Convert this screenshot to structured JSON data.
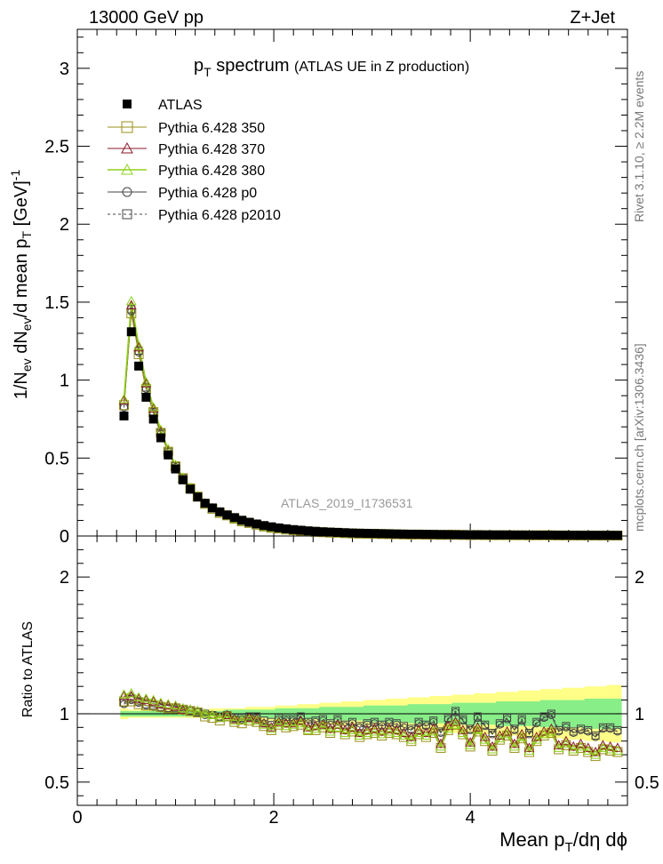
{
  "header": {
    "left": "13000 GeV pp",
    "right": "Z+Jet"
  },
  "title_main": "p",
  "title_sub": "T",
  "title_rest": " spectrum ",
  "title_paren": "(ATLAS UE in Z production)",
  "analysis_label": "ATLAS_2019_I1736531",
  "side_right_top": "Rivet 3.1.10, ≥ 2.2M events",
  "side_right_bottom": "mcplots.cern.ch [arXiv:1306.3436]",
  "ylabel_top": "1/N_ev dN_ev/d mean p_T [GeV]^-1",
  "ylabel_bottom": "Ratio to ATLAS",
  "xlabel": "Mean p_T/dη dϕ",
  "colors": {
    "data": "#000000",
    "p350": "#9a8f1b",
    "p370": "#8b1a2a",
    "p380": "#8fd11d",
    "p0": "#444444",
    "p2010": "#444444",
    "band_outer": "#ffff88",
    "band_inner": "#88ee88"
  },
  "chart_data": {
    "type": "scatter",
    "x": [
      0.475,
      0.55,
      0.625,
      0.7,
      0.775,
      0.85,
      0.925,
      1.0,
      1.075,
      1.15,
      1.225,
      1.3,
      1.375,
      1.45,
      1.525,
      1.6,
      1.675,
      1.75,
      1.825,
      1.9,
      1.975,
      2.05,
      2.125,
      2.2,
      2.275,
      2.35,
      2.425,
      2.5,
      2.575,
      2.65,
      2.725,
      2.8,
      2.875,
      2.95,
      3.025,
      3.1,
      3.175,
      3.25,
      3.325,
      3.4,
      3.475,
      3.55,
      3.625,
      3.7,
      3.775,
      3.85,
      3.925,
      4.0,
      4.075,
      4.15,
      4.225,
      4.3,
      4.375,
      4.45,
      4.525,
      4.6,
      4.675,
      4.75,
      4.825,
      4.9,
      4.975,
      5.05,
      5.125,
      5.2,
      5.275,
      5.35,
      5.425,
      5.5
    ],
    "xlim": [
      0,
      5.6
    ],
    "ylim_main": [
      0,
      3.25
    ],
    "ylim_ratio": [
      0.33,
      2.3
    ],
    "xticks": [
      "0",
      "2",
      "4"
    ],
    "yticks_main": [
      "0",
      "0.5",
      "1",
      "1.5",
      "2",
      "2.5",
      "3"
    ],
    "yticks_ratio": [
      "0.5",
      "1",
      "2"
    ],
    "series": [
      {
        "name": "ATLAS",
        "key": "data",
        "marker": "filled-square",
        "values": [
          0.77,
          1.31,
          1.09,
          0.89,
          0.75,
          0.63,
          0.52,
          0.43,
          0.36,
          0.3,
          0.25,
          0.21,
          0.18,
          0.155,
          0.135,
          0.118,
          0.101,
          0.088,
          0.077,
          0.067,
          0.059,
          0.052,
          0.046,
          0.041,
          0.037,
          0.033,
          0.03,
          0.027,
          0.025,
          0.023,
          0.021,
          0.019,
          0.018,
          0.017,
          0.016,
          0.015,
          0.014,
          0.013,
          0.012,
          0.0115,
          0.011,
          0.0105,
          0.01,
          0.0095,
          0.009,
          0.0085,
          0.008,
          0.0078,
          0.0075,
          0.0072,
          0.007,
          0.0068,
          0.0066,
          0.0064,
          0.0062,
          0.006,
          0.0058,
          0.0056,
          0.0054,
          0.0052,
          0.005,
          0.0048,
          0.0046,
          0.0045,
          0.0044,
          0.0043,
          0.0042,
          0.0041
        ]
      },
      {
        "name": "Pythia 6.428 350",
        "key": "p350",
        "marker": "open-square",
        "ratio": [
          1.09,
          1.09,
          1.07,
          1.06,
          1.06,
          1.05,
          1.04,
          1.04,
          1.03,
          1.02,
          1.01,
          0.98,
          0.97,
          0.95,
          0.98,
          0.94,
          0.93,
          0.95,
          0.94,
          0.91,
          0.88,
          0.92,
          0.9,
          0.91,
          0.92,
          0.88,
          0.88,
          0.9,
          0.86,
          0.9,
          0.85,
          0.87,
          0.83,
          0.85,
          0.86,
          0.84,
          0.86,
          0.85,
          0.83,
          0.8,
          0.85,
          0.83,
          0.86,
          0.75,
          0.88,
          0.92,
          0.85,
          0.76,
          0.87,
          0.8,
          0.73,
          0.81,
          0.84,
          0.75,
          0.82,
          0.72,
          0.8,
          0.84,
          0.86,
          0.74,
          0.77,
          0.73,
          0.75,
          0.72,
          0.69,
          0.74,
          0.73,
          0.72
        ]
      },
      {
        "name": "Pythia 6.428 370",
        "key": "p370",
        "marker": "open-triangle",
        "ratio": [
          1.13,
          1.13,
          1.11,
          1.1,
          1.09,
          1.07,
          1.06,
          1.05,
          1.03,
          1.03,
          1.02,
          1.0,
          0.99,
          0.97,
          0.99,
          0.96,
          0.95,
          0.97,
          0.96,
          0.93,
          0.9,
          0.94,
          0.93,
          0.93,
          0.95,
          0.9,
          0.91,
          0.92,
          0.89,
          0.92,
          0.88,
          0.9,
          0.86,
          0.88,
          0.89,
          0.87,
          0.89,
          0.88,
          0.86,
          0.83,
          0.88,
          0.86,
          0.89,
          0.78,
          0.91,
          0.94,
          0.88,
          0.79,
          0.9,
          0.83,
          0.76,
          0.84,
          0.87,
          0.78,
          0.85,
          0.75,
          0.83,
          0.87,
          0.89,
          0.77,
          0.8,
          0.76,
          0.78,
          0.75,
          0.72,
          0.77,
          0.76,
          0.75
        ]
      },
      {
        "name": "Pythia 6.428 380",
        "key": "p380",
        "marker": "open-triangle",
        "ratio": [
          1.14,
          1.15,
          1.12,
          1.11,
          1.1,
          1.08,
          1.07,
          1.06,
          1.04,
          1.03,
          1.02,
          1.0,
          0.99,
          0.97,
          0.98,
          0.95,
          0.95,
          0.96,
          0.95,
          0.92,
          0.89,
          0.93,
          0.91,
          0.92,
          0.93,
          0.88,
          0.89,
          0.91,
          0.87,
          0.9,
          0.86,
          0.88,
          0.84,
          0.86,
          0.87,
          0.85,
          0.87,
          0.86,
          0.84,
          0.81,
          0.86,
          0.84,
          0.87,
          0.76,
          0.89,
          0.92,
          0.86,
          0.77,
          0.88,
          0.81,
          0.74,
          0.82,
          0.85,
          0.76,
          0.83,
          0.73,
          0.81,
          0.85,
          0.87,
          0.75,
          0.78,
          0.74,
          0.76,
          0.73,
          0.7,
          0.75,
          0.74,
          0.73
        ]
      },
      {
        "name": "Pythia 6.428 p0",
        "key": "p0",
        "marker": "open-circle",
        "ratio": [
          1.07,
          1.1,
          1.08,
          1.06,
          1.05,
          1.04,
          1.04,
          1.03,
          1.02,
          1.02,
          1.01,
          0.99,
          0.99,
          0.97,
          0.99,
          0.96,
          0.96,
          0.97,
          0.97,
          0.93,
          0.92,
          0.96,
          0.95,
          0.95,
          0.97,
          0.93,
          0.94,
          0.95,
          0.92,
          0.95,
          0.91,
          0.93,
          0.9,
          0.92,
          0.93,
          0.91,
          0.93,
          0.92,
          0.9,
          0.88,
          0.93,
          0.91,
          0.94,
          0.86,
          0.96,
          1.01,
          0.95,
          0.88,
          0.97,
          0.91,
          0.85,
          0.92,
          0.96,
          0.88,
          0.95,
          0.85,
          0.93,
          0.97,
          0.99,
          0.87,
          0.9,
          0.86,
          0.88,
          0.87,
          0.83,
          0.89,
          0.89,
          0.87
        ]
      },
      {
        "name": "Pythia 6.428 p2010",
        "key": "p2010",
        "marker": "open-square-dashed",
        "ratio": [
          1.08,
          1.11,
          1.09,
          1.07,
          1.06,
          1.05,
          1.04,
          1.04,
          1.03,
          1.02,
          1.01,
          1.0,
          0.99,
          0.98,
          0.99,
          0.97,
          0.97,
          0.98,
          0.98,
          0.95,
          0.94,
          0.97,
          0.96,
          0.96,
          0.98,
          0.94,
          0.95,
          0.96,
          0.93,
          0.96,
          0.92,
          0.94,
          0.91,
          0.93,
          0.94,
          0.92,
          0.94,
          0.93,
          0.91,
          0.89,
          0.94,
          0.92,
          0.95,
          0.87,
          0.97,
          1.02,
          0.96,
          0.89,
          0.98,
          0.92,
          0.86,
          0.93,
          0.97,
          0.89,
          0.96,
          0.86,
          0.94,
          0.98,
          1.0,
          0.88,
          0.91,
          0.87,
          0.89,
          0.88,
          0.84,
          0.9,
          0.9,
          0.88
        ]
      }
    ],
    "band_outer": {
      "low": [
        0.96,
        0.97,
        0.97,
        0.97,
        0.97,
        0.97,
        0.97,
        0.97,
        0.97,
        0.97,
        0.97,
        0.97,
        0.97,
        0.96,
        0.96,
        0.96,
        0.96,
        0.95,
        0.95,
        0.95,
        0.95,
        0.94,
        0.94,
        0.94,
        0.93,
        0.93,
        0.93,
        0.92,
        0.92,
        0.92,
        0.91,
        0.91,
        0.91,
        0.9,
        0.9,
        0.9,
        0.89,
        0.89,
        0.89,
        0.88,
        0.88,
        0.88,
        0.87,
        0.87,
        0.87,
        0.86,
        0.86,
        0.86,
        0.85,
        0.85,
        0.85,
        0.84,
        0.84,
        0.84,
        0.83,
        0.83,
        0.83,
        0.82,
        0.82,
        0.82,
        0.81,
        0.81,
        0.81,
        0.8,
        0.8,
        0.8,
        0.79,
        0.79
      ],
      "high": [
        1.04,
        1.03,
        1.03,
        1.03,
        1.03,
        1.03,
        1.03,
        1.03,
        1.03,
        1.03,
        1.03,
        1.03,
        1.04,
        1.04,
        1.04,
        1.04,
        1.04,
        1.05,
        1.05,
        1.05,
        1.05,
        1.06,
        1.06,
        1.06,
        1.07,
        1.07,
        1.07,
        1.08,
        1.08,
        1.08,
        1.09,
        1.09,
        1.09,
        1.1,
        1.1,
        1.1,
        1.11,
        1.11,
        1.11,
        1.12,
        1.12,
        1.12,
        1.13,
        1.13,
        1.13,
        1.14,
        1.14,
        1.14,
        1.15,
        1.15,
        1.15,
        1.16,
        1.16,
        1.16,
        1.17,
        1.17,
        1.17,
        1.18,
        1.18,
        1.18,
        1.19,
        1.19,
        1.19,
        1.2,
        1.2,
        1.2,
        1.21,
        1.21
      ]
    },
    "band_inner": {
      "low": [
        0.98,
        0.98,
        0.98,
        0.98,
        0.98,
        0.98,
        0.98,
        0.98,
        0.98,
        0.98,
        0.98,
        0.98,
        0.98,
        0.98,
        0.97,
        0.97,
        0.97,
        0.97,
        0.97,
        0.97,
        0.97,
        0.96,
        0.96,
        0.96,
        0.96,
        0.96,
        0.96,
        0.95,
        0.95,
        0.95,
        0.95,
        0.95,
        0.95,
        0.94,
        0.94,
        0.94,
        0.94,
        0.94,
        0.94,
        0.93,
        0.93,
        0.93,
        0.93,
        0.93,
        0.93,
        0.92,
        0.92,
        0.92,
        0.92,
        0.92,
        0.92,
        0.91,
        0.91,
        0.91,
        0.91,
        0.91,
        0.91,
        0.9,
        0.9,
        0.9,
        0.9,
        0.9,
        0.9,
        0.89,
        0.89,
        0.89,
        0.89,
        0.89
      ],
      "high": [
        1.02,
        1.02,
        1.02,
        1.02,
        1.02,
        1.02,
        1.02,
        1.02,
        1.02,
        1.02,
        1.02,
        1.02,
        1.02,
        1.02,
        1.03,
        1.03,
        1.03,
        1.03,
        1.03,
        1.03,
        1.03,
        1.04,
        1.04,
        1.04,
        1.04,
        1.04,
        1.04,
        1.05,
        1.05,
        1.05,
        1.05,
        1.05,
        1.05,
        1.06,
        1.06,
        1.06,
        1.06,
        1.06,
        1.06,
        1.07,
        1.07,
        1.07,
        1.07,
        1.07,
        1.07,
        1.08,
        1.08,
        1.08,
        1.08,
        1.08,
        1.08,
        1.09,
        1.09,
        1.09,
        1.09,
        1.09,
        1.09,
        1.1,
        1.1,
        1.1,
        1.1,
        1.1,
        1.1,
        1.11,
        1.11,
        1.11,
        1.11,
        1.11
      ]
    }
  }
}
